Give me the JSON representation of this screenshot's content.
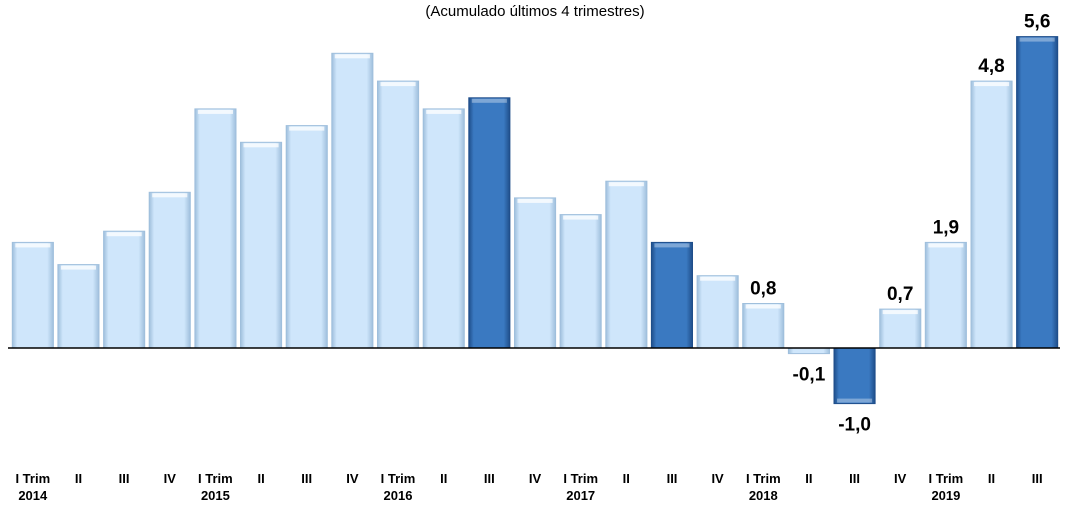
{
  "chart_data": {
    "type": "bar",
    "subtitle": "(Acumulado últimos 4 trimestres)",
    "categories": [
      "I Trim",
      "II",
      "III",
      "IV",
      "I Trim",
      "II",
      "III",
      "IV",
      "I Trim",
      "II",
      "III",
      "IV",
      "I Trim",
      "II",
      "III",
      "IV",
      "I Trim",
      "II",
      "III",
      "IV",
      "I Trim",
      "II",
      "III"
    ],
    "years": [
      "2014",
      "",
      "",
      "",
      "2015",
      "",
      "",
      "",
      "2016",
      "",
      "",
      "",
      "2017",
      "",
      "",
      "",
      "2018",
      "",
      "",
      "",
      "2019",
      "",
      ""
    ],
    "values": [
      1.9,
      1.5,
      2.1,
      2.8,
      4.3,
      3.7,
      4.0,
      5.3,
      4.8,
      4.3,
      4.5,
      2.7,
      2.4,
      3.0,
      1.9,
      1.3,
      0.8,
      -0.1,
      -1.0,
      0.7,
      1.9,
      4.8,
      5.6
    ],
    "value_labels": [
      "",
      "",
      "",
      "",
      "",
      "",
      "",
      "",
      "",
      "",
      "",
      "",
      "",
      "",
      "",
      "",
      "0,8",
      "-0,1",
      "-1,0",
      "0,7",
      "1,9",
      "4,8",
      "5,6"
    ],
    "highlight": [
      false,
      false,
      false,
      false,
      false,
      false,
      false,
      false,
      false,
      false,
      true,
      false,
      false,
      false,
      true,
      false,
      false,
      false,
      true,
      false,
      false,
      false,
      true
    ],
    "ylim": [
      -1.6,
      5.9
    ],
    "colors": {
      "light_fill": "#cfe6fb",
      "light_edge": "#9fbfdc",
      "dark_fill": "#3a79c1",
      "dark_edge": "#1f4e8a",
      "axis": "#000000"
    }
  }
}
